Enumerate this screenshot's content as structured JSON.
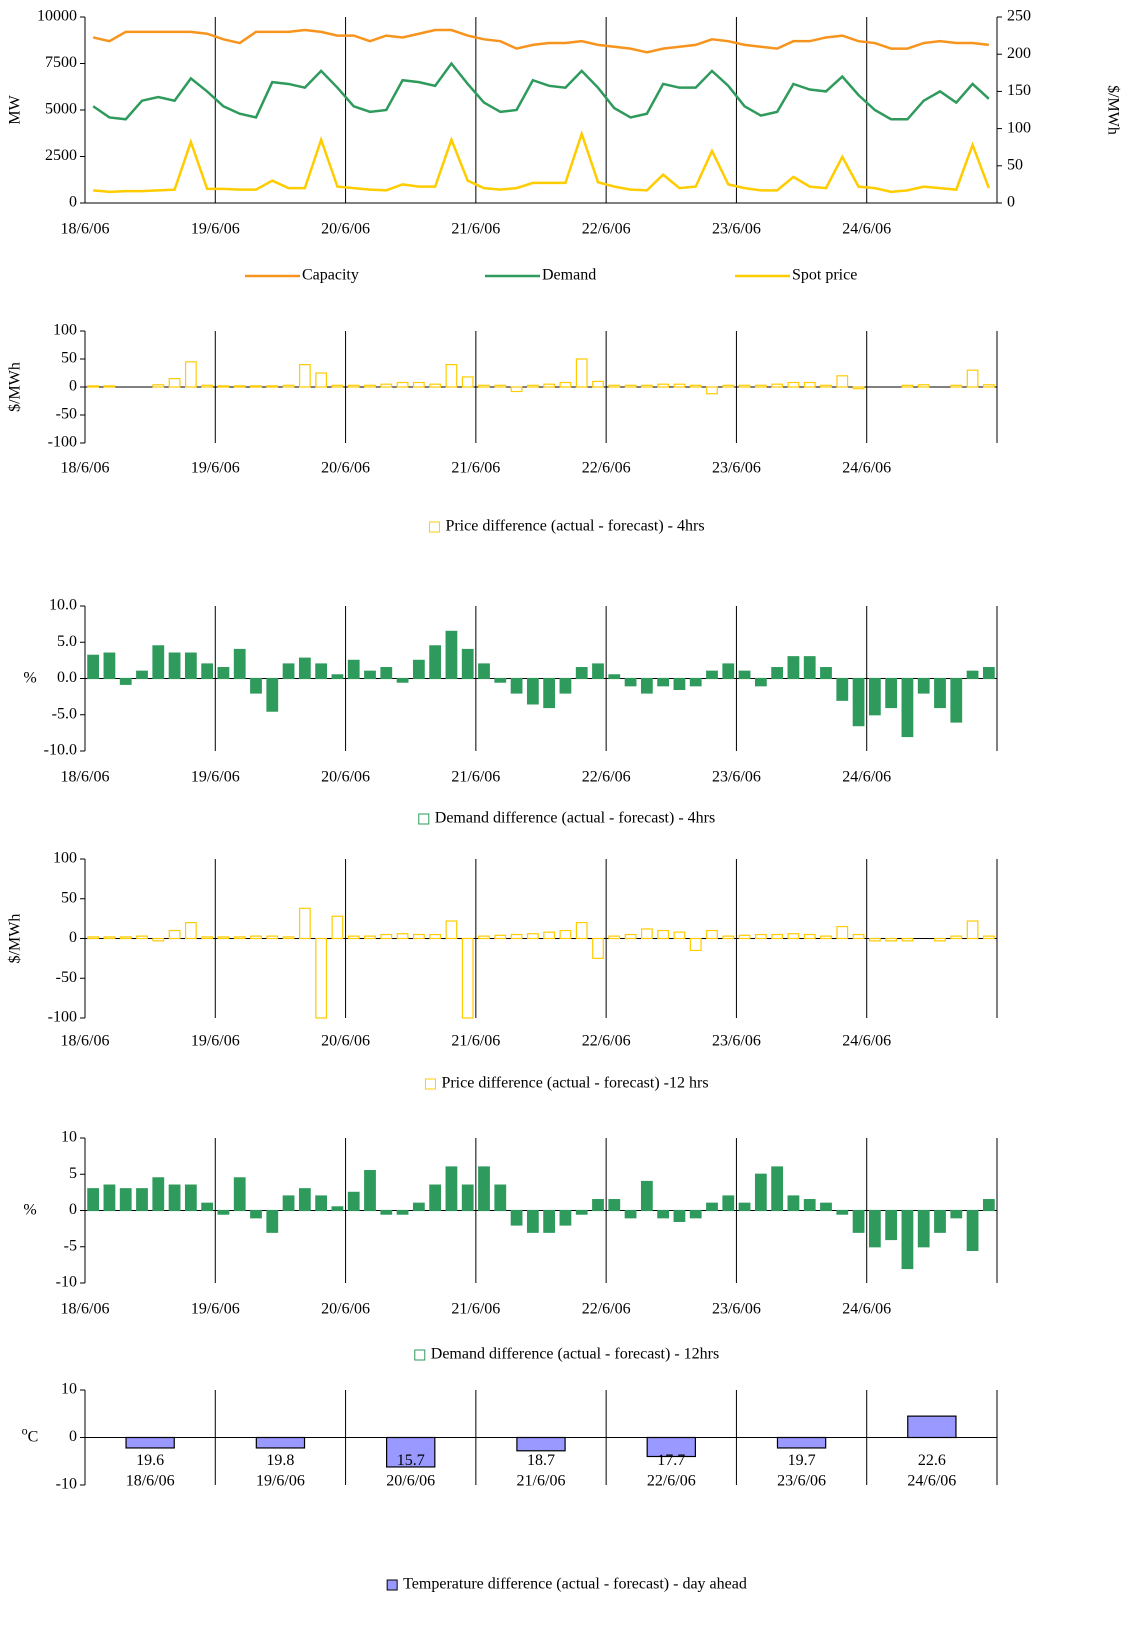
{
  "chart_data": [
    {
      "type": "line",
      "y_label": "MW",
      "ylabel_rotated": true,
      "y2_label": "$/MWh",
      "categories": [
        "18/6/06",
        null,
        null,
        null,
        null,
        null,
        null,
        null,
        "19/6/06",
        null,
        null,
        null,
        null,
        null,
        null,
        null,
        "20/6/06",
        null,
        null,
        null,
        null,
        null,
        null,
        null,
        "21/6/06",
        null,
        null,
        null,
        null,
        null,
        null,
        null,
        "22/6/06",
        null,
        null,
        null,
        null,
        null,
        null,
        null,
        "23/6/06",
        null,
        null,
        null,
        null,
        null,
        null,
        null,
        "24/6/06",
        null,
        null,
        null,
        null,
        null,
        null,
        null
      ],
      "ylim": [
        0,
        10000
      ],
      "yticks": [
        0,
        2500,
        5000,
        7500,
        10000
      ],
      "y2lim": [
        0,
        250
      ],
      "y2ticks": [
        0,
        50,
        100,
        150,
        200,
        250
      ],
      "series": [
        {
          "name": "Capacity",
          "color": "#f7941d",
          "values": [
            8900,
            8700,
            9200,
            9200,
            9200,
            9200,
            9200,
            9100,
            8800,
            8600,
            9200,
            9200,
            9200,
            9300,
            9200,
            9000,
            9000,
            8700,
            9000,
            8900,
            9100,
            9300,
            9300,
            9000,
            8800,
            8700,
            8300,
            8500,
            8600,
            8600,
            8700,
            8500,
            8400,
            8300,
            8100,
            8300,
            8400,
            8500,
            8800,
            8700,
            8500,
            8400,
            8300,
            8700,
            8700,
            8900,
            9000,
            8700,
            8600,
            8300,
            8300,
            8600,
            8700,
            8600,
            8600,
            8500
          ]
        },
        {
          "name": "Demand",
          "color": "#2e9a5c",
          "values": [
            5200,
            4600,
            4500,
            5500,
            5700,
            5500,
            6700,
            6000,
            5200,
            4800,
            4600,
            6500,
            6400,
            6200,
            7100,
            6200,
            5200,
            4900,
            5000,
            6600,
            6500,
            6300,
            7500,
            6400,
            5400,
            4900,
            5000,
            6600,
            6300,
            6200,
            7100,
            6200,
            5100,
            4600,
            4800,
            6400,
            6200,
            6200,
            7100,
            6300,
            5200,
            4700,
            4900,
            6400,
            6100,
            6000,
            6800,
            5800,
            5000,
            4500,
            4500,
            5500,
            6000,
            5400,
            6400,
            5600
          ]
        },
        {
          "name": "Spot price",
          "color": "#ffcc00",
          "axis": "y2",
          "values": [
            17,
            15,
            16,
            16,
            17,
            18,
            82,
            19,
            19,
            18,
            18,
            30,
            20,
            20,
            85,
            22,
            20,
            18,
            17,
            25,
            22,
            22,
            85,
            30,
            20,
            18,
            20,
            27,
            27,
            27,
            93,
            28,
            22,
            18,
            17,
            38,
            20,
            22,
            70,
            25,
            20,
            17,
            17,
            35,
            22,
            20,
            62,
            22,
            20,
            15,
            17,
            22,
            20,
            18,
            78,
            20
          ]
        }
      ]
    },
    {
      "type": "bar",
      "y_label": "$/MWh",
      "ylabel_rotated": true,
      "categories": [
        "18/6/06",
        null,
        null,
        null,
        null,
        null,
        null,
        null,
        "19/6/06",
        null,
        null,
        null,
        null,
        null,
        null,
        null,
        "20/6/06",
        null,
        null,
        null,
        null,
        null,
        null,
        null,
        "21/6/06",
        null,
        null,
        null,
        null,
        null,
        null,
        null,
        "22/6/06",
        null,
        null,
        null,
        null,
        null,
        null,
        null,
        "23/6/06",
        null,
        null,
        null,
        null,
        null,
        null,
        null,
        "24/6/06",
        null,
        null,
        null,
        null,
        null,
        null,
        null
      ],
      "ylim": [
        -100,
        100
      ],
      "yticks": [
        -100,
        -50,
        0,
        50,
        100
      ],
      "series": [
        {
          "name": "Price difference (actual - forecast) - 4hrs",
          "color": "#ffffff",
          "edgecolor": "#ffcc00",
          "values": [
            2,
            2,
            0,
            0,
            4,
            15,
            45,
            3,
            2,
            2,
            2,
            2,
            3,
            40,
            25,
            3,
            3,
            3,
            5,
            8,
            8,
            5,
            40,
            18,
            3,
            3,
            -8,
            3,
            5,
            8,
            50,
            10,
            3,
            3,
            3,
            5,
            5,
            3,
            -12,
            3,
            3,
            3,
            5,
            8,
            8,
            3,
            20,
            -3,
            0,
            0,
            3,
            4,
            0,
            3,
            30,
            4
          ]
        }
      ]
    },
    {
      "type": "bar",
      "y_label": "%",
      "ylabel_rotated": false,
      "categories": [
        "18/6/06",
        null,
        null,
        null,
        null,
        null,
        null,
        null,
        "19/6/06",
        null,
        null,
        null,
        null,
        null,
        null,
        null,
        "20/6/06",
        null,
        null,
        null,
        null,
        null,
        null,
        null,
        "21/6/06",
        null,
        null,
        null,
        null,
        null,
        null,
        null,
        "22/6/06",
        null,
        null,
        null,
        null,
        null,
        null,
        null,
        "23/6/06",
        null,
        null,
        null,
        null,
        null,
        null,
        null,
        "24/6/06",
        null,
        null,
        null,
        null,
        null,
        null,
        null
      ],
      "ylim": [
        -10,
        10
      ],
      "yticks": [
        {
          "value": -10,
          "label": "-10.0"
        },
        {
          "value": -5,
          "label": "-5.0"
        },
        {
          "value": 0,
          "label": "0.0"
        },
        {
          "value": 5,
          "label": "5.0"
        },
        {
          "value": 10,
          "label": "10.0"
        }
      ],
      "series": [
        {
          "name": "Demand difference (actual - forecast) - 4hrs",
          "color": "#2e9a5c",
          "edgecolor": "#2e9a5c",
          "values": [
            3.2,
            3.5,
            -0.8,
            1.0,
            4.5,
            3.5,
            3.5,
            2.0,
            1.5,
            4.0,
            -2.0,
            -4.5,
            2.0,
            2.8,
            2.0,
            0.5,
            2.5,
            1.0,
            1.5,
            -0.5,
            2.5,
            4.5,
            6.5,
            4.0,
            2.0,
            -0.5,
            -2.0,
            -3.5,
            -4.0,
            -2.0,
            1.5,
            2.0,
            0.5,
            -1.0,
            -2.0,
            -1.0,
            -1.5,
            -1.0,
            1.0,
            2.0,
            1.0,
            -1.0,
            1.5,
            3.0,
            3.0,
            1.5,
            -3.0,
            -6.5,
            -5.0,
            -4.0,
            -8.0,
            -2.0,
            -4.0,
            -6.0,
            1.0,
            1.5
          ]
        }
      ]
    },
    {
      "type": "bar",
      "y_label": "$/MWh",
      "ylabel_rotated": true,
      "categories": [
        "18/6/06",
        null,
        null,
        null,
        null,
        null,
        null,
        null,
        "19/6/06",
        null,
        null,
        null,
        null,
        null,
        null,
        null,
        "20/6/06",
        null,
        null,
        null,
        null,
        null,
        null,
        null,
        "21/6/06",
        null,
        null,
        null,
        null,
        null,
        null,
        null,
        "22/6/06",
        null,
        null,
        null,
        null,
        null,
        null,
        null,
        "23/6/06",
        null,
        null,
        null,
        null,
        null,
        null,
        null,
        "24/6/06",
        null,
        null,
        null,
        null,
        null,
        null,
        null
      ],
      "ylim": [
        -100,
        100
      ],
      "yticks": [
        -100,
        -50,
        0,
        50,
        100
      ],
      "series": [
        {
          "name": "Price difference (actual - forecast) -12 hrs",
          "color": "#ffffff",
          "edgecolor": "#ffcc00",
          "values": [
            2,
            2,
            2,
            3,
            -3,
            10,
            20,
            2,
            2,
            2,
            3,
            3,
            2,
            38,
            -100,
            28,
            3,
            3,
            5,
            6,
            5,
            5,
            22,
            -100,
            3,
            4,
            5,
            6,
            8,
            10,
            20,
            -25,
            3,
            5,
            12,
            10,
            8,
            -15,
            10,
            3,
            4,
            5,
            5,
            6,
            5,
            3,
            15,
            5,
            -3,
            -3,
            -3,
            0,
            -3,
            3,
            22,
            3
          ]
        }
      ]
    },
    {
      "type": "bar",
      "y_label": "%",
      "ylabel_rotated": false,
      "categories": [
        "18/6/06",
        null,
        null,
        null,
        null,
        null,
        null,
        null,
        "19/6/06",
        null,
        null,
        null,
        null,
        null,
        null,
        null,
        "20/6/06",
        null,
        null,
        null,
        null,
        null,
        null,
        null,
        "21/6/06",
        null,
        null,
        null,
        null,
        null,
        null,
        null,
        "22/6/06",
        null,
        null,
        null,
        null,
        null,
        null,
        null,
        "23/6/06",
        null,
        null,
        null,
        null,
        null,
        null,
        null,
        "24/6/06",
        null,
        null,
        null,
        null,
        null,
        null,
        null
      ],
      "ylim": [
        -10,
        10
      ],
      "yticks": [
        -10,
        -5,
        0,
        5,
        10
      ],
      "series": [
        {
          "name": "Demand difference (actual - forecast) - 12hrs",
          "color": "#2e9a5c",
          "edgecolor": "#2e9a5c",
          "values": [
            3.0,
            3.5,
            3.0,
            3.0,
            4.5,
            3.5,
            3.5,
            1.0,
            -0.5,
            4.5,
            -1.0,
            -3.0,
            2.0,
            3.0,
            2.0,
            0.5,
            2.5,
            5.5,
            -0.5,
            -0.5,
            1.0,
            3.5,
            6.0,
            3.5,
            6.0,
            3.5,
            -2.0,
            -3.0,
            -3.0,
            -2.0,
            -0.5,
            1.5,
            1.5,
            -1.0,
            4.0,
            -1.0,
            -1.5,
            -1.0,
            1.0,
            2.0,
            1.0,
            5.0,
            6.0,
            2.0,
            1.5,
            1.0,
            -0.5,
            -3.0,
            -5.0,
            -4.0,
            -8.0,
            -5.0,
            -3.0,
            -1.0,
            -5.5,
            1.5
          ]
        }
      ]
    },
    {
      "type": "bar",
      "y_label_super": "o",
      "y_label": "C",
      "ylabel_rotated": false,
      "categories": [
        "18/6/06",
        "19/6/06",
        "20/6/06",
        "21/6/06",
        "22/6/06",
        "23/6/06",
        "24/6/06"
      ],
      "ylim": [
        -10,
        10
      ],
      "yticks": [
        -10,
        0,
        10
      ],
      "temperatures": [
        19.6,
        19.8,
        15.7,
        18.7,
        17.7,
        19.7,
        22.6
      ],
      "series": [
        {
          "name": "Temperature difference (actual - forecast) - day ahead",
          "color": "#9999ff",
          "edgecolor": "#000000",
          "values": [
            -2.2,
            -2.2,
            -6.2,
            -2.8,
            -4.0,
            -2.2,
            4.5
          ]
        }
      ]
    }
  ]
}
